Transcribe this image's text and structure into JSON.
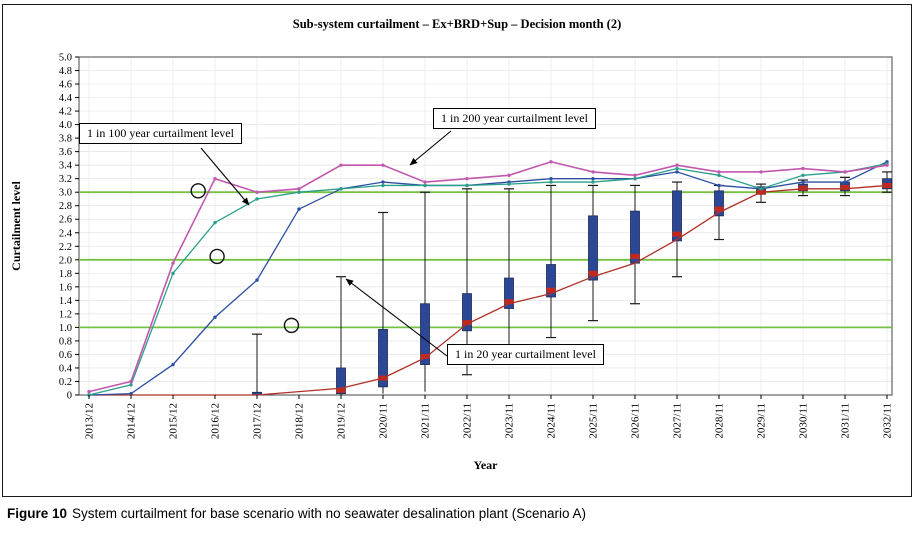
{
  "figure": {
    "caption_label": "Figure 10",
    "caption_text": "System curtailment for base scenario with no seawater desalination plant (Scenario A)"
  },
  "annotations": {
    "box_100yr": "1 in 100 year curtailment level",
    "box_200yr": "1 in 200 year curtailment level",
    "box_20yr": "1 in 20 year curtailment level"
  },
  "chart_data": {
    "type": "line+box",
    "title": "Sub-system curtailment – Ex+BRD+Sup – Decision month (2)",
    "xlabel": "Year",
    "ylabel": "Curtailment level",
    "ylim": [
      0,
      5.0
    ],
    "ytick_step": 0.2,
    "grid": true,
    "categories": [
      "2013/12",
      "2014/12",
      "2015/12",
      "2016/12",
      "2017/12",
      "2018/12",
      "2019/12",
      "2020/11",
      "2021/11",
      "2022/11",
      "2023/11",
      "2024/11",
      "2025/11",
      "2026/11",
      "2027/11",
      "2028/11",
      "2029/11",
      "2030/11",
      "2031/11",
      "2032/11"
    ],
    "reference_lines": {
      "values": [
        1.0,
        2.0,
        3.0
      ],
      "color": "#76c043"
    },
    "series": [
      {
        "name": "1 in 200 year curtailment level",
        "color": "#c257ae",
        "values": [
          0.05,
          0.2,
          1.95,
          3.2,
          3.0,
          3.05,
          3.4,
          3.4,
          3.15,
          3.2,
          3.25,
          3.45,
          3.3,
          3.25,
          3.4,
          3.3,
          3.3,
          3.35,
          3.3,
          3.4
        ]
      },
      {
        "name": "1 in 100 year curtailment level",
        "color": "#2aa08a",
        "values": [
          0.0,
          0.15,
          1.8,
          2.55,
          2.9,
          3.0,
          3.05,
          3.1,
          3.1,
          3.1,
          3.12,
          3.15,
          3.15,
          3.2,
          3.35,
          3.25,
          3.05,
          3.25,
          3.3,
          3.42
        ]
      },
      {
        "name": "unlabeled blue line",
        "color": "#2c4fa3",
        "values": [
          0.0,
          0.02,
          0.45,
          1.15,
          1.7,
          2.75,
          3.05,
          3.15,
          3.1,
          3.1,
          3.15,
          3.2,
          3.2,
          3.2,
          3.3,
          3.1,
          3.05,
          3.15,
          3.15,
          3.45
        ]
      },
      {
        "name": "unlabeled red line",
        "color": "#b03026",
        "values": [
          0.0,
          0.0,
          0.0,
          0.0,
          0.0,
          0.05,
          0.1,
          0.25,
          0.55,
          1.05,
          1.35,
          1.5,
          1.75,
          1.95,
          2.3,
          2.7,
          3.0,
          3.05,
          3.05,
          3.1
        ]
      }
    ],
    "box_style": {
      "fill": "#2c4796",
      "median": "#c4281c",
      "stroke": "#1b2a55"
    },
    "boxes_note": "whisker tops correspond to the 1 in 20 year curtailment level",
    "boxes": [
      {
        "x_index": 4,
        "low": 0,
        "q1": 0,
        "median": 0.01,
        "q3": 0.04,
        "high": 0.9
      },
      {
        "x_index": 6,
        "low": 0,
        "q1": 0.02,
        "median": 0.07,
        "q3": 0.4,
        "high": 1.75
      },
      {
        "x_index": 7,
        "low": 0.02,
        "q1": 0.12,
        "median": 0.25,
        "q3": 0.97,
        "high": 2.7
      },
      {
        "x_index": 8,
        "low": 0.05,
        "q1": 0.45,
        "median": 0.57,
        "q3": 1.35,
        "high": 3.0
      },
      {
        "x_index": 9,
        "low": 0.3,
        "q1": 0.95,
        "median": 1.07,
        "q3": 1.5,
        "high": 3.05
      },
      {
        "x_index": 10,
        "low": 0.55,
        "q1": 1.28,
        "median": 1.38,
        "q3": 1.73,
        "high": 3.05
      },
      {
        "x_index": 11,
        "low": 0.85,
        "q1": 1.45,
        "median": 1.55,
        "q3": 1.93,
        "high": 3.1
      },
      {
        "x_index": 12,
        "low": 1.1,
        "q1": 1.7,
        "median": 1.8,
        "q3": 2.65,
        "high": 3.1
      },
      {
        "x_index": 13,
        "low": 1.35,
        "q1": 1.95,
        "median": 2.05,
        "q3": 2.72,
        "high": 3.1
      },
      {
        "x_index": 14,
        "low": 1.75,
        "q1": 2.28,
        "median": 2.38,
        "q3": 3.02,
        "high": 3.15
      },
      {
        "x_index": 15,
        "low": 2.3,
        "q1": 2.65,
        "median": 2.75,
        "q3": 3.02,
        "high": 3.1
      },
      {
        "x_index": 16,
        "low": 2.85,
        "q1": 2.97,
        "median": 3.0,
        "q3": 3.08,
        "high": 3.12
      },
      {
        "x_index": 17,
        "low": 2.95,
        "q1": 3.02,
        "median": 3.06,
        "q3": 3.12,
        "high": 3.18
      },
      {
        "x_index": 18,
        "low": 2.95,
        "q1": 3.02,
        "median": 3.07,
        "q3": 3.15,
        "high": 3.22
      },
      {
        "x_index": 19,
        "low": 3.0,
        "q1": 3.05,
        "median": 3.1,
        "q3": 3.2,
        "high": 3.3
      }
    ],
    "circled_points": [
      {
        "x_index": 2.6,
        "value": 3.02
      },
      {
        "x_index": 3.05,
        "value": 2.05
      },
      {
        "x_index": 4.82,
        "value": 1.03
      }
    ]
  }
}
